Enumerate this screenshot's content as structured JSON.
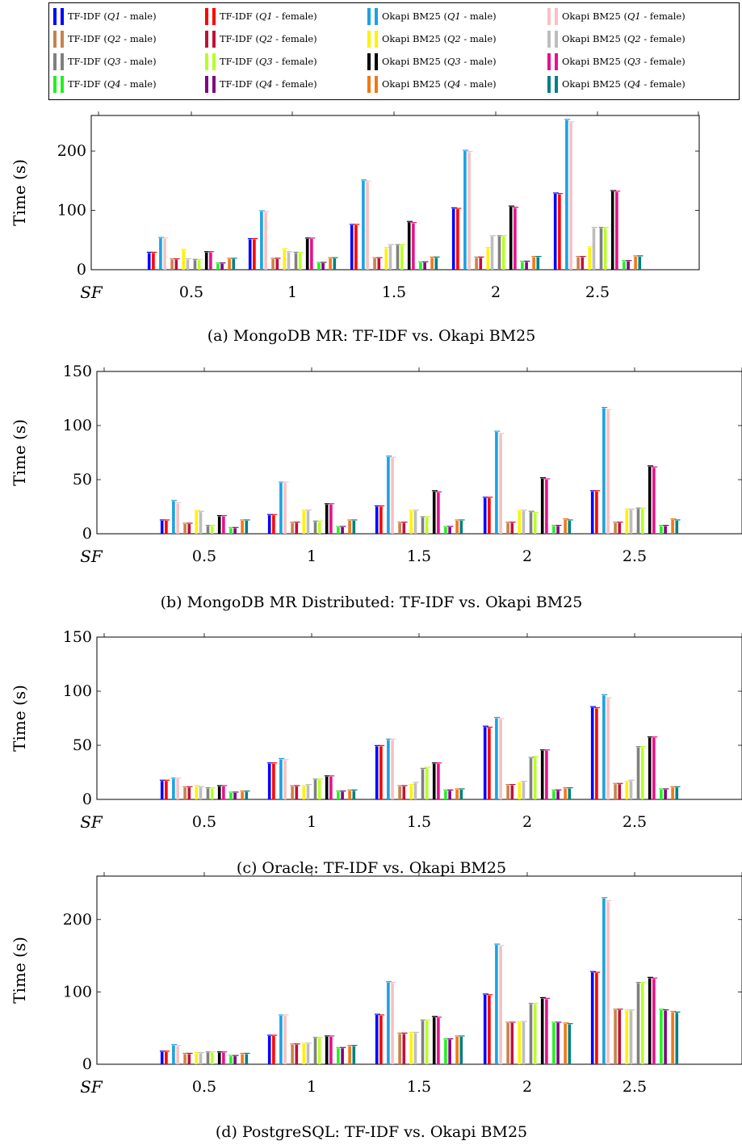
{
  "legend": {
    "entries": [
      {
        "label": "TF-IDF (Q1 - male)",
        "color": "#0000FF"
      },
      {
        "label": "TF-IDF (Q1 - female)",
        "color": "#FF0000"
      },
      {
        "label": "Okapi BM25 (Q1 - male)",
        "color": "#1BA1E2"
      },
      {
        "label": "Okapi BM25 (Q1 - female)",
        "color": "#F9C0C0"
      },
      {
        "label": "TF-IDF (Q2 - male)",
        "color": "#C8824A"
      },
      {
        "label": "TF-IDF (Q2 - female)",
        "color": "#C0113A"
      },
      {
        "label": "Okapi BM25 (Q2 - male)",
        "color": "#FFF200"
      },
      {
        "label": "Okapi BM25 (Q2 - female)",
        "color": "#BDBDBD"
      },
      {
        "label": "TF-IDF (Q3 - male)",
        "color": "#808080"
      },
      {
        "label": "TF-IDF (Q3 - female)",
        "color": "#B8FF22"
      },
      {
        "label": "Okapi BM25 (Q3 - male)",
        "color": "#000000"
      },
      {
        "label": "Okapi BM25 (Q3 - female)",
        "color": "#E8108A"
      },
      {
        "label": "TF-IDF (Q4 - male)",
        "color": "#22F022"
      },
      {
        "label": "TF-IDF (Q4 - female)",
        "color": "#800080"
      },
      {
        "label": "Okapi BM25 (Q4 - male)",
        "color": "#F07818"
      },
      {
        "label": "Okapi BM25 (Q4 - female)",
        "color": "#008080"
      }
    ]
  },
  "chart_data": [
    {
      "type": "bar",
      "title": "(a) MongoDB MR: TF-IDF vs. Okapi BM25",
      "xlabel": "SF",
      "ylabel": "Time (s)",
      "categories": [
        "0.5",
        "1",
        "1.5",
        "2",
        "2.5"
      ],
      "ylim": [
        0,
        260
      ],
      "yticks": [
        0,
        100,
        200
      ],
      "series_values": [
        [
          28,
          51,
          75,
          103,
          128
        ],
        [
          28,
          51,
          75,
          102,
          127
        ],
        [
          53,
          98,
          150,
          200,
          252
        ],
        [
          52,
          97,
          148,
          198,
          248
        ],
        [
          17,
          18,
          19,
          20,
          21
        ],
        [
          17,
          18,
          19,
          20,
          21
        ],
        [
          33,
          34,
          36,
          36,
          37
        ],
        [
          17,
          29,
          41,
          56,
          70
        ],
        [
          16,
          28,
          41,
          56,
          70
        ],
        [
          16,
          28,
          41,
          56,
          70
        ],
        [
          29,
          52,
          80,
          106,
          132
        ],
        [
          29,
          52,
          78,
          104,
          131
        ],
        [
          10,
          11,
          12,
          13,
          14
        ],
        [
          10,
          11,
          12,
          13,
          14
        ],
        [
          18,
          19,
          20,
          21,
          22
        ],
        [
          18,
          19,
          20,
          21,
          22
        ]
      ]
    },
    {
      "type": "bar",
      "title": "(b) MongoDB MR Distributed: TF-IDF vs. Okapi BM25",
      "xlabel": "SF",
      "ylabel": "Time (s)",
      "categories": [
        "0.5",
        "1",
        "1.5",
        "2",
        "2.5"
      ],
      "ylim": [
        0,
        150
      ],
      "yticks": [
        0,
        50,
        100,
        150
      ],
      "series_values": [
        [
          12,
          17,
          25,
          33,
          39
        ],
        [
          12,
          17,
          25,
          33,
          39
        ],
        [
          30,
          47,
          71,
          94,
          116
        ],
        [
          28,
          47,
          70,
          92,
          114
        ],
        [
          9,
          10,
          10,
          10,
          10
        ],
        [
          9,
          10,
          10,
          10,
          10
        ],
        [
          21,
          21,
          21,
          21,
          22
        ],
        [
          20,
          21,
          21,
          21,
          22
        ],
        [
          7,
          11,
          15,
          20,
          23
        ],
        [
          7,
          11,
          15,
          19,
          23
        ],
        [
          16,
          27,
          39,
          51,
          62
        ],
        [
          16,
          27,
          38,
          50,
          61
        ],
        [
          5,
          6,
          6,
          7,
          7
        ],
        [
          5,
          6,
          6,
          7,
          7
        ],
        [
          12,
          12,
          12,
          13,
          13
        ],
        [
          12,
          12,
          12,
          12,
          12
        ]
      ]
    },
    {
      "type": "bar",
      "title": "(c) Oracle: TF-IDF vs. Okapi BM25",
      "xlabel": "SF",
      "ylabel": "Time (s)",
      "categories": [
        "0.5",
        "1",
        "1.5",
        "2",
        "2.5"
      ],
      "ylim": [
        0,
        150
      ],
      "yticks": [
        0,
        50,
        100,
        150
      ],
      "series_values": [
        [
          17,
          33,
          49,
          67,
          85
        ],
        [
          17,
          33,
          49,
          66,
          84
        ],
        [
          19,
          37,
          55,
          75,
          96
        ],
        [
          19,
          36,
          55,
          74,
          93
        ],
        [
          11,
          12,
          12,
          13,
          14
        ],
        [
          11,
          12,
          12,
          13,
          14
        ],
        [
          12,
          12,
          13,
          15,
          16
        ],
        [
          11,
          13,
          15,
          16,
          17
        ],
        [
          10,
          18,
          28,
          38,
          48
        ],
        [
          10,
          18,
          29,
          39,
          48
        ],
        [
          12,
          21,
          33,
          45,
          57
        ],
        [
          12,
          21,
          33,
          45,
          57
        ],
        [
          6,
          7,
          8,
          8,
          9
        ],
        [
          6,
          7,
          8,
          8,
          9
        ],
        [
          7,
          8,
          9,
          10,
          11
        ],
        [
          7,
          8,
          9,
          10,
          11
        ]
      ]
    },
    {
      "type": "bar",
      "title": "(d) PostgreSQL: TF-IDF vs. Okapi BM25",
      "xlabel": "SF",
      "ylabel": "Time (s)",
      "categories": [
        "0.5",
        "1",
        "1.5",
        "2",
        "2.5"
      ],
      "ylim": [
        0,
        260
      ],
      "yticks": [
        0,
        100,
        200
      ],
      "series_values": [
        [
          17,
          39,
          68,
          96,
          127
        ],
        [
          17,
          39,
          67,
          95,
          126
        ],
        [
          26,
          67,
          113,
          165,
          229
        ],
        [
          25,
          67,
          112,
          163,
          225
        ],
        [
          14,
          27,
          42,
          57,
          75
        ],
        [
          14,
          27,
          42,
          57,
          75
        ],
        [
          15,
          28,
          43,
          58,
          74
        ],
        [
          15,
          28,
          43,
          58,
          74
        ],
        [
          16,
          36,
          60,
          83,
          112
        ],
        [
          16,
          36,
          60,
          83,
          112
        ],
        [
          16,
          38,
          65,
          91,
          119
        ],
        [
          16,
          38,
          64,
          90,
          118
        ],
        [
          11,
          22,
          34,
          57,
          75
        ],
        [
          11,
          22,
          34,
          57,
          74
        ],
        [
          14,
          25,
          38,
          56,
          72
        ],
        [
          14,
          25,
          38,
          55,
          71
        ]
      ]
    }
  ]
}
